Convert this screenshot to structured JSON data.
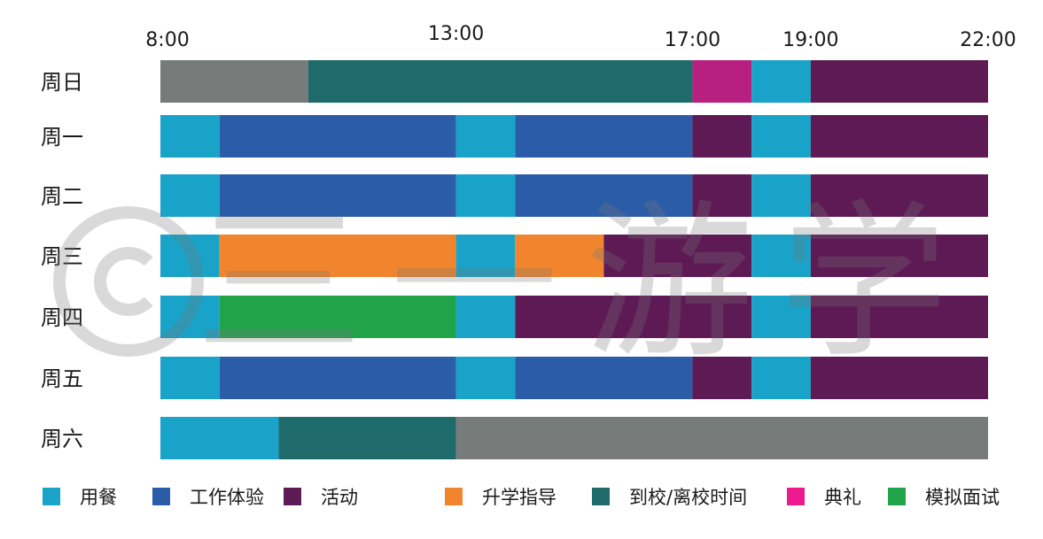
{
  "chart_data": {
    "type": "bar",
    "orientation": "horizontal-stacked-timeline",
    "x_ticks": [
      "8:00",
      "13:00",
      "17:00",
      "19:00",
      "22:00"
    ],
    "xlim": [
      "8:00",
      "22:00"
    ],
    "legend_position": "bottom",
    "grid": false,
    "categories_legend": [
      {
        "key": "meal",
        "label": "用餐",
        "color": "#1aa3c8"
      },
      {
        "key": "work",
        "label": "工作体验",
        "color": "#2b5ca8"
      },
      {
        "key": "activity",
        "label": "活动",
        "color": "#5e1a55"
      },
      {
        "key": "guidance",
        "label": "升学指导",
        "color": "#f0852d"
      },
      {
        "key": "transit",
        "label": "到校/离校时间",
        "color": "#1f6a6a"
      },
      {
        "key": "ceremony",
        "label": "典礼",
        "color": "#ec1a8c"
      },
      {
        "key": "interview",
        "label": "模拟面试",
        "color": "#21a34a"
      }
    ],
    "rows": [
      {
        "label": "周日",
        "segments": [
          {
            "start": "8:00",
            "end": "10:30",
            "category": "none",
            "color": "#777b7a"
          },
          {
            "start": "10:30",
            "end": "17:00",
            "category": "transit",
            "color": "#1f6a6a"
          },
          {
            "start": "17:00",
            "end": "18:00",
            "category": "ceremony",
            "color": "#b8207f"
          },
          {
            "start": "18:00",
            "end": "19:00",
            "category": "meal",
            "color": "#1aa3c8"
          },
          {
            "start": "19:00",
            "end": "22:00",
            "category": "activity",
            "color": "#5e1a55"
          }
        ]
      },
      {
        "label": "周一",
        "segments": [
          {
            "start": "8:00",
            "end": "9:00",
            "category": "meal",
            "color": "#1aa3c8"
          },
          {
            "start": "9:00",
            "end": "13:00",
            "category": "work",
            "color": "#2b5ca8"
          },
          {
            "start": "13:00",
            "end": "14:00",
            "category": "meal",
            "color": "#1aa3c8"
          },
          {
            "start": "14:00",
            "end": "17:00",
            "category": "work",
            "color": "#2b5ca8"
          },
          {
            "start": "17:00",
            "end": "18:00",
            "category": "activity",
            "color": "#5e1a55"
          },
          {
            "start": "18:00",
            "end": "19:00",
            "category": "meal",
            "color": "#1aa3c8"
          },
          {
            "start": "19:00",
            "end": "22:00",
            "category": "activity",
            "color": "#5e1a55"
          }
        ]
      },
      {
        "label": "周二",
        "segments": [
          {
            "start": "8:00",
            "end": "9:00",
            "category": "meal",
            "color": "#1aa3c8"
          },
          {
            "start": "9:00",
            "end": "13:00",
            "category": "work",
            "color": "#2b5ca8"
          },
          {
            "start": "13:00",
            "end": "14:00",
            "category": "meal",
            "color": "#1aa3c8"
          },
          {
            "start": "14:00",
            "end": "17:00",
            "category": "work",
            "color": "#2b5ca8"
          },
          {
            "start": "17:00",
            "end": "18:00",
            "category": "activity",
            "color": "#5e1a55"
          },
          {
            "start": "18:00",
            "end": "19:00",
            "category": "meal",
            "color": "#1aa3c8"
          },
          {
            "start": "19:00",
            "end": "22:00",
            "category": "activity",
            "color": "#5e1a55"
          }
        ]
      },
      {
        "label": "周三",
        "segments": [
          {
            "start": "8:00",
            "end": "9:00",
            "category": "meal",
            "color": "#1aa3c8"
          },
          {
            "start": "9:00",
            "end": "13:00",
            "category": "guidance",
            "color": "#f0852d"
          },
          {
            "start": "13:00",
            "end": "14:00",
            "category": "meal",
            "color": "#1aa3c8"
          },
          {
            "start": "14:00",
            "end": "15:30",
            "category": "guidance",
            "color": "#f0852d"
          },
          {
            "start": "15:30",
            "end": "18:00",
            "category": "activity",
            "color": "#5e1a55"
          },
          {
            "start": "18:00",
            "end": "19:00",
            "category": "meal",
            "color": "#1aa3c8"
          },
          {
            "start": "19:00",
            "end": "22:00",
            "category": "activity",
            "color": "#5e1a55"
          }
        ]
      },
      {
        "label": "周四",
        "segments": [
          {
            "start": "8:00",
            "end": "9:00",
            "category": "meal",
            "color": "#1aa3c8"
          },
          {
            "start": "9:00",
            "end": "13:00",
            "category": "interview",
            "color": "#21a34a"
          },
          {
            "start": "13:00",
            "end": "14:00",
            "category": "meal",
            "color": "#1aa3c8"
          },
          {
            "start": "14:00",
            "end": "18:00",
            "category": "activity",
            "color": "#5e1a55"
          },
          {
            "start": "18:00",
            "end": "19:00",
            "category": "meal",
            "color": "#1aa3c8"
          },
          {
            "start": "19:00",
            "end": "22:00",
            "category": "activity",
            "color": "#5e1a55"
          }
        ]
      },
      {
        "label": "周五",
        "segments": [
          {
            "start": "8:00",
            "end": "9:00",
            "category": "meal",
            "color": "#1aa3c8"
          },
          {
            "start": "9:00",
            "end": "13:00",
            "category": "work",
            "color": "#2b5ca8"
          },
          {
            "start": "13:00",
            "end": "14:00",
            "category": "meal",
            "color": "#1aa3c8"
          },
          {
            "start": "14:00",
            "end": "17:00",
            "category": "work",
            "color": "#2b5ca8"
          },
          {
            "start": "17:00",
            "end": "18:00",
            "category": "activity",
            "color": "#5e1a55"
          },
          {
            "start": "18:00",
            "end": "19:00",
            "category": "meal",
            "color": "#1aa3c8"
          },
          {
            "start": "19:00",
            "end": "22:00",
            "category": "activity",
            "color": "#5e1a55"
          }
        ]
      },
      {
        "label": "周六",
        "segments": [
          {
            "start": "8:00",
            "end": "10:00",
            "category": "meal",
            "color": "#1aa3c8"
          },
          {
            "start": "10:00",
            "end": "13:00",
            "category": "transit",
            "color": "#1f6a6a"
          },
          {
            "start": "13:00",
            "end": "22:00",
            "category": "none",
            "color": "#777b7a"
          }
        ]
      }
    ]
  },
  "watermark": {
    "symbol": "©",
    "text": "三一游学"
  }
}
